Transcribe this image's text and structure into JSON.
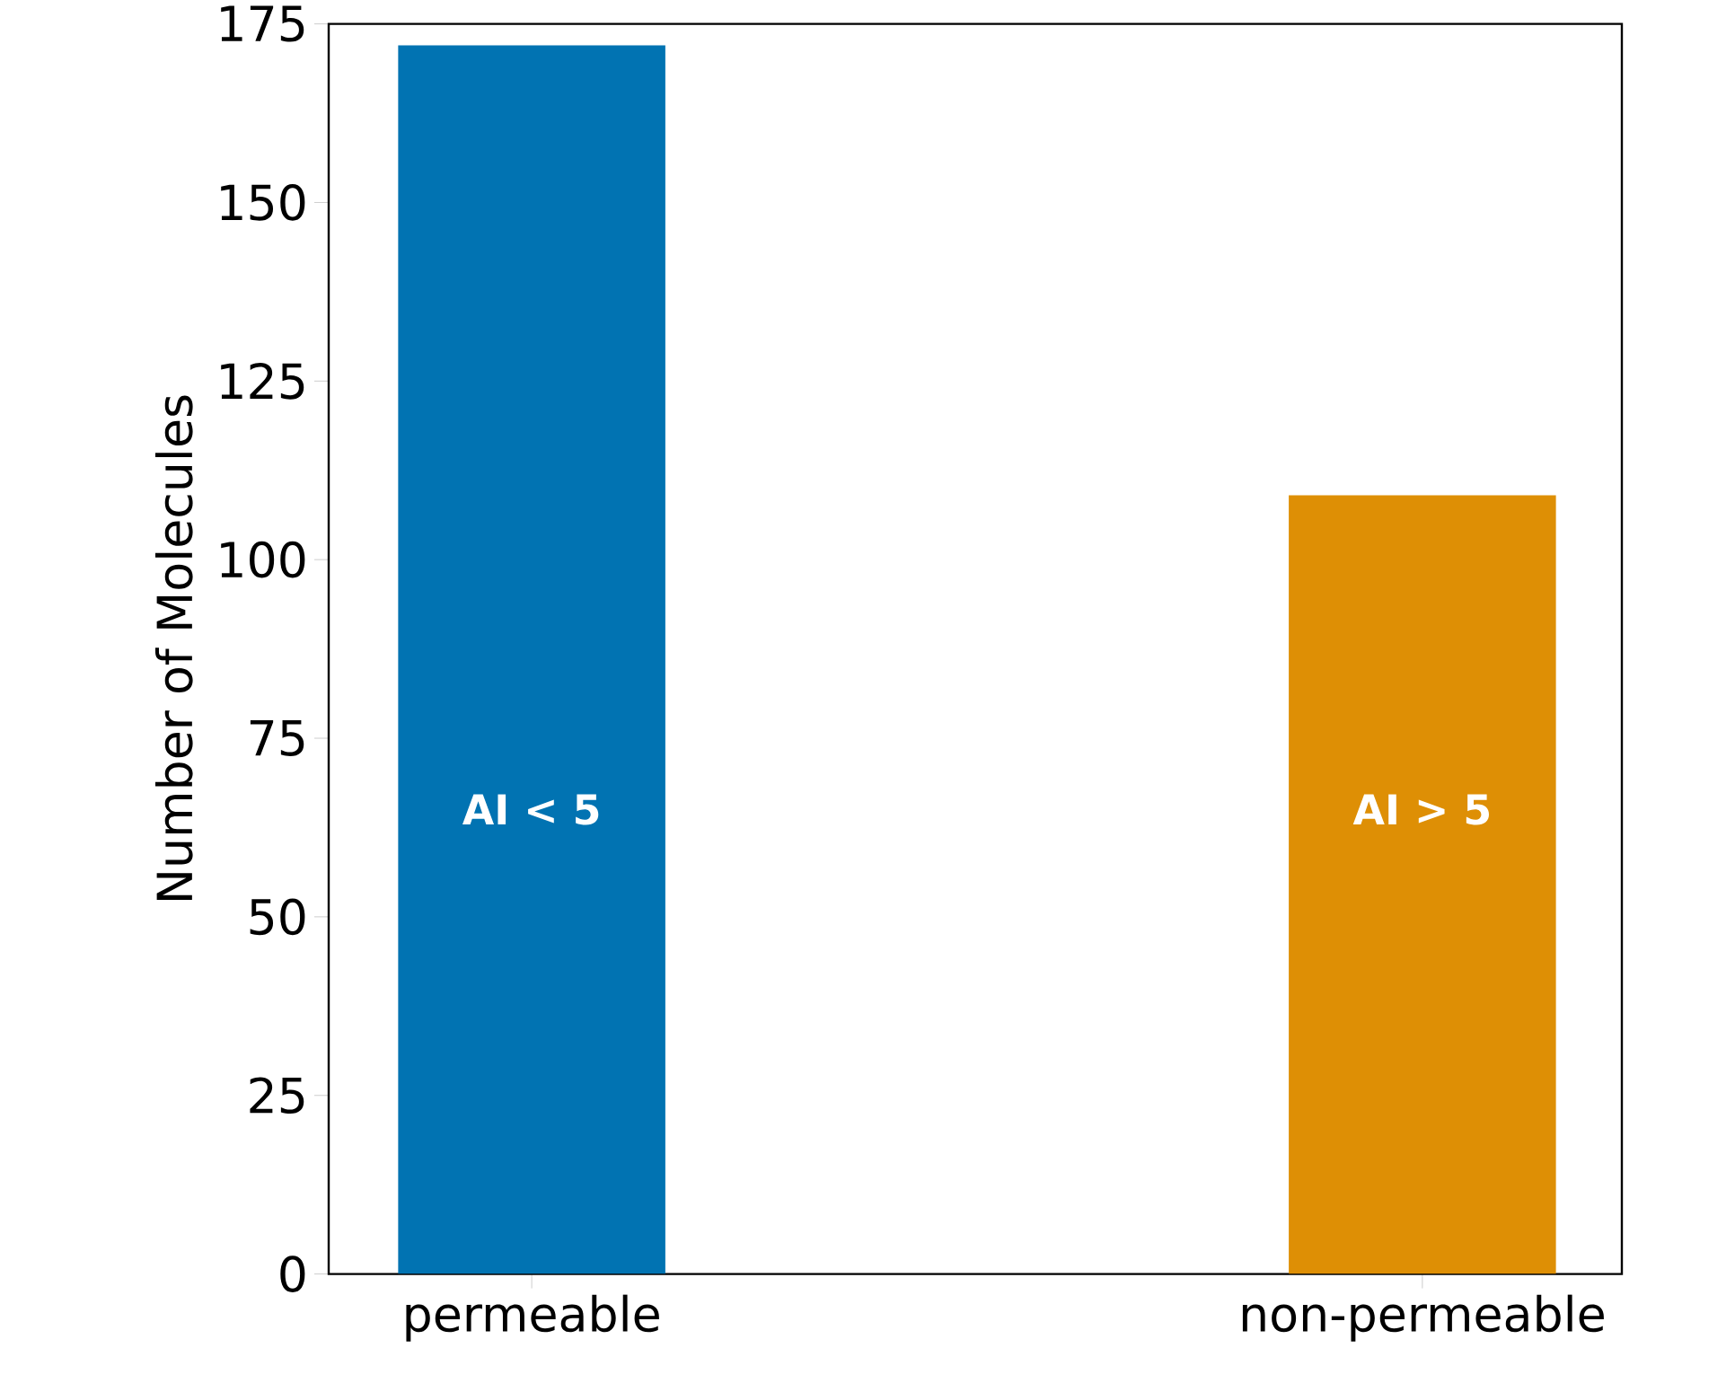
{
  "chart_data": {
    "type": "bar",
    "ylabel": "Number of Molecules",
    "categories": [
      "permeable",
      "non-permeable"
    ],
    "values": [
      172,
      109
    ],
    "colors": [
      "#0173b2",
      "#de8f05"
    ],
    "ylim": [
      0,
      175
    ],
    "yticks": [
      0,
      25,
      50,
      75,
      100,
      125,
      150,
      175
    ],
    "annotations": [
      "AI < 5",
      "AI > 5"
    ],
    "grid": false
  }
}
